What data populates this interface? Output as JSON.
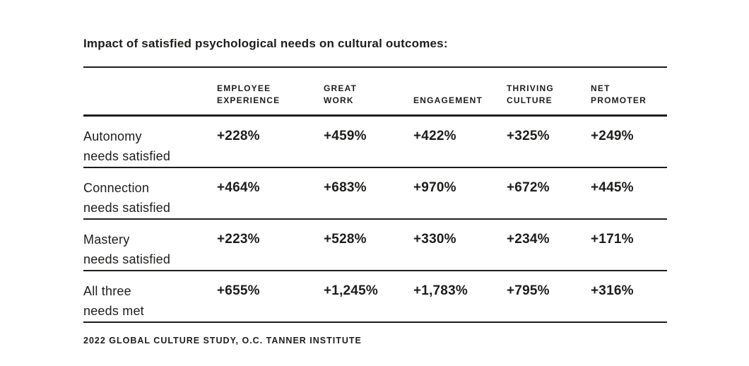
{
  "title": "Impact of satisfied psychological needs on cultural outcomes:",
  "table": {
    "columns": [
      "EMPLOYEE\nEXPERIENCE",
      "GREAT\nWORK",
      "ENGAGEMENT",
      "THRIVING\nCULTURE",
      "NET\nPROMOTER"
    ],
    "rows": [
      {
        "label": "Autonomy\nneeds satisfied",
        "values": [
          "+228%",
          "+459%",
          "+422%",
          "+325%",
          "+249%"
        ]
      },
      {
        "label": "Connection\nneeds satisfied",
        "values": [
          "+464%",
          "+683%",
          "+970%",
          "+672%",
          "+445%"
        ]
      },
      {
        "label": "Mastery\nneeds satisfied",
        "values": [
          "+223%",
          "+528%",
          "+330%",
          "+234%",
          "+171%"
        ]
      },
      {
        "label": "All three\nneeds met",
        "values": [
          "+655%",
          "+1,245%",
          "+1,783%",
          "+795%",
          "+316%"
        ]
      }
    ]
  },
  "footer": "2022 GLOBAL CULTURE STUDY, O.C. TANNER INSTITUTE",
  "colors": {
    "text": "#1d1d1b",
    "rule": "#1d1d1b",
    "background": "#ffffff"
  },
  "chart_data": {
    "type": "table",
    "title": "Impact of satisfied psychological needs on cultural outcomes:",
    "columns": [
      "Employee Experience",
      "Great Work",
      "Engagement",
      "Thriving Culture",
      "Net Promoter"
    ],
    "rows": [
      {
        "category": "Autonomy needs satisfied",
        "values": [
          228,
          459,
          422,
          325,
          249
        ]
      },
      {
        "category": "Connection needs satisfied",
        "values": [
          464,
          683,
          970,
          672,
          445
        ]
      },
      {
        "category": "Mastery needs satisfied",
        "values": [
          223,
          528,
          330,
          234,
          171
        ]
      },
      {
        "category": "All three needs met",
        "values": [
          655,
          1245,
          1783,
          795,
          316
        ]
      }
    ],
    "value_unit": "percent increase",
    "source": "2022 Global Culture Study, O.C. Tanner Institute"
  }
}
